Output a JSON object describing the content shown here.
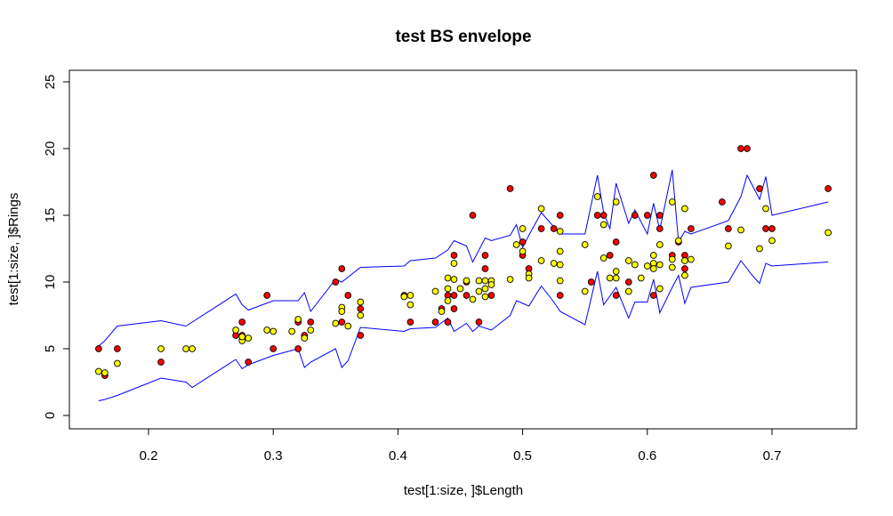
{
  "chart_data": {
    "type": "scatter",
    "title": "test BS envelope",
    "xlabel": "test[1:size, ]$Length",
    "ylabel": "test[1:size, ]$Rings",
    "xlim": [
      0.15,
      0.75
    ],
    "ylim": [
      0,
      25
    ],
    "x_ticks": [
      "0.2",
      "0.3",
      "0.4",
      "0.5",
      "0.6",
      "0.7"
    ],
    "y_ticks": [
      "0",
      "5",
      "10",
      "15",
      "20",
      "25"
    ],
    "grid": false,
    "legend": "none",
    "series": [
      {
        "marker_color": "#ff0000",
        "points": [
          [
            0.16,
            5
          ],
          [
            0.165,
            3
          ],
          [
            0.175,
            5
          ],
          [
            0.21,
            4
          ],
          [
            0.27,
            6
          ],
          [
            0.275,
            7
          ],
          [
            0.275,
            6
          ],
          [
            0.28,
            4
          ],
          [
            0.295,
            9
          ],
          [
            0.3,
            5
          ],
          [
            0.32,
            7
          ],
          [
            0.32,
            5
          ],
          [
            0.325,
            6
          ],
          [
            0.33,
            7
          ],
          [
            0.35,
            10
          ],
          [
            0.355,
            11
          ],
          [
            0.355,
            7
          ],
          [
            0.36,
            9
          ],
          [
            0.37,
            8
          ],
          [
            0.37,
            6
          ],
          [
            0.405,
            9
          ],
          [
            0.41,
            7
          ],
          [
            0.43,
            7
          ],
          [
            0.435,
            8
          ],
          [
            0.44,
            9
          ],
          [
            0.44,
            7
          ],
          [
            0.445,
            12
          ],
          [
            0.445,
            9
          ],
          [
            0.445,
            8
          ],
          [
            0.455,
            10
          ],
          [
            0.455,
            9
          ],
          [
            0.46,
            15
          ],
          [
            0.465,
            7
          ],
          [
            0.47,
            12
          ],
          [
            0.47,
            11
          ],
          [
            0.475,
            9
          ],
          [
            0.49,
            17
          ],
          [
            0.5,
            13
          ],
          [
            0.5,
            12
          ],
          [
            0.505,
            11
          ],
          [
            0.515,
            14
          ],
          [
            0.525,
            14
          ],
          [
            0.53,
            15
          ],
          [
            0.53,
            9
          ],
          [
            0.555,
            10
          ],
          [
            0.56,
            15
          ],
          [
            0.565,
            15
          ],
          [
            0.57,
            12
          ],
          [
            0.575,
            13
          ],
          [
            0.575,
            9
          ],
          [
            0.585,
            10
          ],
          [
            0.59,
            15
          ],
          [
            0.6,
            15
          ],
          [
            0.605,
            18
          ],
          [
            0.605,
            9
          ],
          [
            0.61,
            15
          ],
          [
            0.61,
            14
          ],
          [
            0.62,
            12
          ],
          [
            0.625,
            13
          ],
          [
            0.63,
            12
          ],
          [
            0.63,
            11
          ],
          [
            0.635,
            14
          ],
          [
            0.66,
            16
          ],
          [
            0.665,
            14
          ],
          [
            0.675,
            20
          ],
          [
            0.68,
            20
          ],
          [
            0.69,
            17
          ],
          [
            0.695,
            14
          ],
          [
            0.7,
            14
          ],
          [
            0.745,
            17
          ]
        ]
      },
      {
        "marker_color": "#ffff00",
        "points": [
          [
            0.16,
            3.3
          ],
          [
            0.165,
            3.2
          ],
          [
            0.175,
            3.9
          ],
          [
            0.21,
            5
          ],
          [
            0.23,
            5
          ],
          [
            0.235,
            5
          ],
          [
            0.27,
            6.4
          ],
          [
            0.275,
            5.6
          ],
          [
            0.275,
            5.9
          ],
          [
            0.28,
            5.8
          ],
          [
            0.295,
            6.4
          ],
          [
            0.3,
            6.3
          ],
          [
            0.315,
            6.3
          ],
          [
            0.32,
            7.2
          ],
          [
            0.325,
            5.8
          ],
          [
            0.33,
            6.4
          ],
          [
            0.35,
            6.9
          ],
          [
            0.355,
            8.1
          ],
          [
            0.355,
            7.8
          ],
          [
            0.36,
            6.7
          ],
          [
            0.37,
            8.5
          ],
          [
            0.37,
            7.5
          ],
          [
            0.405,
            8.9
          ],
          [
            0.41,
            9
          ],
          [
            0.41,
            8.3
          ],
          [
            0.43,
            9.3
          ],
          [
            0.435,
            7.8
          ],
          [
            0.44,
            10.3
          ],
          [
            0.44,
            9.5
          ],
          [
            0.44,
            8.6
          ],
          [
            0.445,
            11.4
          ],
          [
            0.445,
            10.2
          ],
          [
            0.45,
            9.5
          ],
          [
            0.455,
            10.1
          ],
          [
            0.46,
            8.7
          ],
          [
            0.465,
            10.1
          ],
          [
            0.465,
            9.3
          ],
          [
            0.47,
            10.1
          ],
          [
            0.47,
            9.5
          ],
          [
            0.47,
            8.9
          ],
          [
            0.475,
            10.1
          ],
          [
            0.475,
            9.8
          ],
          [
            0.49,
            10.2
          ],
          [
            0.495,
            12.8
          ],
          [
            0.5,
            14
          ],
          [
            0.5,
            12.3
          ],
          [
            0.505,
            10.6
          ],
          [
            0.505,
            10.3
          ],
          [
            0.515,
            11.6
          ],
          [
            0.515,
            15.5
          ],
          [
            0.525,
            11.4
          ],
          [
            0.53,
            13.8
          ],
          [
            0.53,
            12.3
          ],
          [
            0.53,
            11.3
          ],
          [
            0.53,
            10.1
          ],
          [
            0.55,
            12.8
          ],
          [
            0.55,
            9.3
          ],
          [
            0.56,
            16.4
          ],
          [
            0.565,
            14.3
          ],
          [
            0.565,
            11.8
          ],
          [
            0.57,
            10.3
          ],
          [
            0.575,
            16
          ],
          [
            0.575,
            10.8
          ],
          [
            0.575,
            10.3
          ],
          [
            0.585,
            11.6
          ],
          [
            0.585,
            9.3
          ],
          [
            0.59,
            11.3
          ],
          [
            0.595,
            10.3
          ],
          [
            0.6,
            11.2
          ],
          [
            0.605,
            12
          ],
          [
            0.605,
            11.4
          ],
          [
            0.605,
            11
          ],
          [
            0.61,
            9.5
          ],
          [
            0.61,
            12.8
          ],
          [
            0.61,
            11.3
          ],
          [
            0.62,
            16
          ],
          [
            0.62,
            11.7
          ],
          [
            0.62,
            11.1
          ],
          [
            0.625,
            13.1
          ],
          [
            0.63,
            15.5
          ],
          [
            0.63,
            11.6
          ],
          [
            0.63,
            10.5
          ],
          [
            0.635,
            11.7
          ],
          [
            0.665,
            12.7
          ],
          [
            0.675,
            13.9
          ],
          [
            0.69,
            12.5
          ],
          [
            0.695,
            15.5
          ],
          [
            0.7,
            13.1
          ],
          [
            0.745,
            13.7
          ]
        ]
      }
    ],
    "envelope": {
      "line_color": "#0000ff",
      "upper": [
        [
          0.16,
          5.2
        ],
        [
          0.165,
          5.6
        ],
        [
          0.175,
          6.7
        ],
        [
          0.21,
          7.1
        ],
        [
          0.23,
          6.7
        ],
        [
          0.27,
          9.1
        ],
        [
          0.275,
          8.3
        ],
        [
          0.28,
          7.9
        ],
        [
          0.3,
          8.6
        ],
        [
          0.32,
          8.6
        ],
        [
          0.325,
          9.2
        ],
        [
          0.33,
          7.8
        ],
        [
          0.35,
          10.2
        ],
        [
          0.355,
          10
        ],
        [
          0.37,
          11.1
        ],
        [
          0.405,
          11.2
        ],
        [
          0.41,
          11.6
        ],
        [
          0.43,
          11.8
        ],
        [
          0.44,
          12.4
        ],
        [
          0.445,
          13.1
        ],
        [
          0.45,
          12.9
        ],
        [
          0.455,
          12.7
        ],
        [
          0.46,
          11.5
        ],
        [
          0.47,
          13.3
        ],
        [
          0.475,
          13.1
        ],
        [
          0.49,
          13.5
        ],
        [
          0.495,
          14.3
        ],
        [
          0.5,
          12.6
        ],
        [
          0.505,
          13.5
        ],
        [
          0.515,
          15.2
        ],
        [
          0.53,
          13.6
        ],
        [
          0.55,
          13.6
        ],
        [
          0.56,
          18
        ],
        [
          0.565,
          15.2
        ],
        [
          0.57,
          14
        ],
        [
          0.575,
          17.4
        ],
        [
          0.585,
          14.4
        ],
        [
          0.59,
          15.4
        ],
        [
          0.6,
          13.6
        ],
        [
          0.605,
          15.9
        ],
        [
          0.61,
          13.9
        ],
        [
          0.62,
          18.4
        ],
        [
          0.625,
          13
        ],
        [
          0.63,
          13.8
        ],
        [
          0.635,
          13.6
        ],
        [
          0.665,
          14.6
        ],
        [
          0.675,
          16.4
        ],
        [
          0.68,
          18
        ],
        [
          0.69,
          16.2
        ],
        [
          0.695,
          17.9
        ],
        [
          0.7,
          15
        ],
        [
          0.745,
          16
        ]
      ],
      "lower": [
        [
          0.16,
          1.1
        ],
        [
          0.165,
          1.2
        ],
        [
          0.175,
          1.5
        ],
        [
          0.21,
          2.8
        ],
        [
          0.23,
          2.5
        ],
        [
          0.235,
          2.1
        ],
        [
          0.27,
          4.2
        ],
        [
          0.275,
          3.5
        ],
        [
          0.28,
          3.8
        ],
        [
          0.3,
          4.5
        ],
        [
          0.32,
          5
        ],
        [
          0.325,
          3.6
        ],
        [
          0.33,
          4
        ],
        [
          0.35,
          5
        ],
        [
          0.355,
          3.6
        ],
        [
          0.36,
          4.1
        ],
        [
          0.37,
          6.6
        ],
        [
          0.405,
          6.3
        ],
        [
          0.41,
          6.5
        ],
        [
          0.43,
          6.6
        ],
        [
          0.44,
          7.3
        ],
        [
          0.445,
          6.3
        ],
        [
          0.455,
          6.9
        ],
        [
          0.46,
          6.3
        ],
        [
          0.465,
          6.7
        ],
        [
          0.475,
          6.4
        ],
        [
          0.49,
          7.5
        ],
        [
          0.495,
          8.6
        ],
        [
          0.5,
          8.4
        ],
        [
          0.505,
          8.2
        ],
        [
          0.515,
          9.7
        ],
        [
          0.525,
          8.5
        ],
        [
          0.53,
          7.8
        ],
        [
          0.55,
          6.8
        ],
        [
          0.56,
          10.8
        ],
        [
          0.565,
          8.3
        ],
        [
          0.575,
          9.6
        ],
        [
          0.585,
          7.3
        ],
        [
          0.59,
          8.5
        ],
        [
          0.6,
          8.5
        ],
        [
          0.605,
          10.2
        ],
        [
          0.61,
          7.7
        ],
        [
          0.62,
          9.6
        ],
        [
          0.625,
          10.5
        ],
        [
          0.63,
          8.4
        ],
        [
          0.635,
          9.6
        ],
        [
          0.665,
          10
        ],
        [
          0.675,
          11.6
        ],
        [
          0.685,
          10.4
        ],
        [
          0.69,
          9.9
        ],
        [
          0.695,
          11.4
        ],
        [
          0.7,
          11.2
        ],
        [
          0.745,
          11.5
        ]
      ]
    }
  }
}
